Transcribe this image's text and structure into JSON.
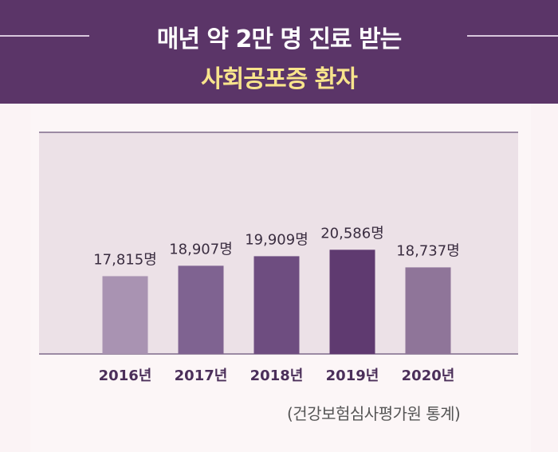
{
  "header": {
    "title_line1": "매년 약 2만 명 진료 받는",
    "title_line2": "사회공포증 환자",
    "background_color": "#5b3568",
    "highlight_color": "#f8e48c"
  },
  "chart_data": {
    "type": "bar",
    "categories": [
      "2016년",
      "2017년",
      "2018년",
      "2019년",
      "2020년"
    ],
    "values": [
      17815,
      18907,
      19909,
      20586,
      18737
    ],
    "value_labels": [
      "17,815명",
      "18,907명",
      "19,909명",
      "20,586명",
      "18,737명"
    ],
    "bar_colors": [
      "#a993b2",
      "#7f6391",
      "#6e4d80",
      "#5f3a70",
      "#8f7599"
    ],
    "plot_background": "#ece1e7",
    "title": "",
    "xlabel": "",
    "ylabel": "",
    "grid": false,
    "legend": "none"
  },
  "source": "(건강보험심사평가원 통계)"
}
